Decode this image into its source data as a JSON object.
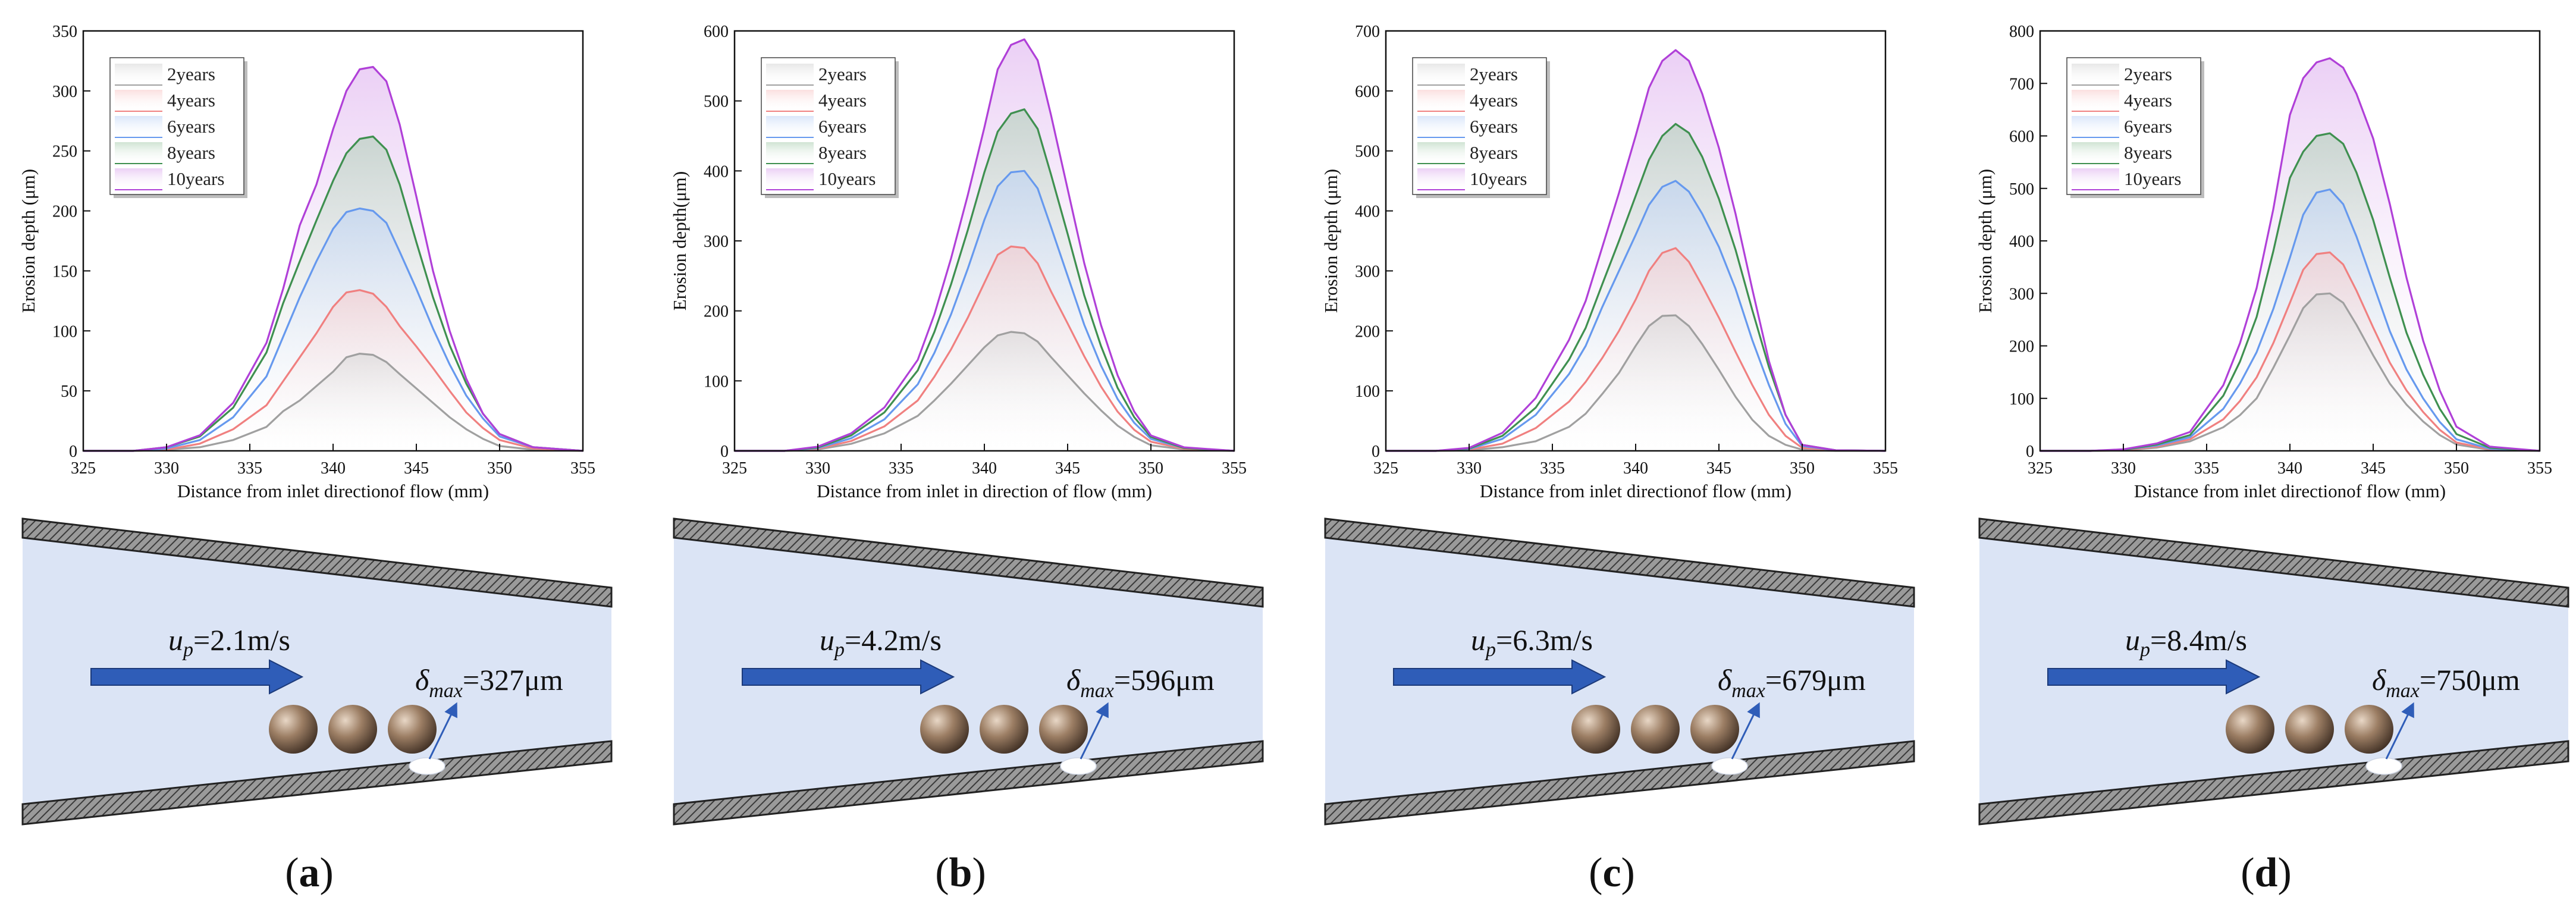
{
  "colors": {
    "2years": "#a0a0a0",
    "4years": "#f08080",
    "6years": "#6699ee",
    "8years": "#3f9050",
    "10years": "#b040d8",
    "fluid": "#dbe4f5",
    "arrow": "#2f5db8",
    "wall": "#888888"
  },
  "chart_data": [
    {
      "type": "area",
      "panel_label": "(a)",
      "xlabel": "Distance from inlet directionof flow (mm)",
      "ylabel": "Erosion depth (μm)",
      "xlim": [
        325,
        355
      ],
      "ylim": [
        0,
        350
      ],
      "xticks": [
        325,
        330,
        335,
        340,
        345,
        350,
        355
      ],
      "yticks": [
        0,
        50,
        100,
        150,
        200,
        250,
        300,
        350
      ],
      "legend_position": "top-left",
      "grid": false,
      "x": [
        325,
        328,
        330,
        332,
        334,
        336,
        337,
        338,
        339,
        340,
        340.8,
        341.6,
        342.4,
        343.2,
        344,
        345,
        346,
        347,
        348,
        349,
        350,
        352,
        355
      ],
      "series": [
        {
          "name": "2years",
          "key": "2years",
          "values": [
            0,
            0,
            1,
            3,
            9,
            20,
            33,
            42,
            54,
            66,
            78,
            81,
            80,
            74,
            64,
            52,
            40,
            28,
            18,
            10,
            4,
            1,
            0
          ]
        },
        {
          "name": "4years",
          "key": "4years",
          "values": [
            0,
            0,
            1,
            6,
            18,
            38,
            58,
            78,
            98,
            120,
            132,
            134,
            131,
            120,
            104,
            87,
            69,
            50,
            32,
            19,
            9,
            2,
            0
          ]
        },
        {
          "name": "6years",
          "key": "6years",
          "values": [
            0,
            0,
            2,
            9,
            28,
            62,
            95,
            128,
            158,
            185,
            199,
            202,
            200,
            190,
            166,
            135,
            102,
            72,
            46,
            27,
            12,
            3,
            0
          ]
        },
        {
          "name": "8years",
          "key": "8years",
          "values": [
            0,
            0,
            3,
            12,
            36,
            82,
            123,
            158,
            192,
            225,
            248,
            260,
            262,
            251,
            222,
            174,
            128,
            88,
            56,
            31,
            14,
            3,
            0
          ]
        },
        {
          "name": "10years",
          "key": "10years",
          "values": [
            0,
            0,
            3,
            13,
            40,
            90,
            135,
            188,
            222,
            268,
            300,
            318,
            320,
            308,
            272,
            212,
            150,
            100,
            60,
            31,
            14,
            3,
            0
          ]
        }
      ],
      "schematic": {
        "velocity_symbol": "u",
        "velocity_subscript": "p",
        "velocity_value": "=2.1m/s",
        "depth_symbol": "δ",
        "depth_subscript": "max",
        "depth_value": "=327μm"
      }
    },
    {
      "type": "area",
      "panel_label": "(b)",
      "xlabel": "Distance from inlet in direction of flow (mm)",
      "ylabel": "Erosion depth(μm)",
      "xlim": [
        325,
        355
      ],
      "ylim": [
        0,
        600
      ],
      "xticks": [
        325,
        330,
        335,
        340,
        345,
        350,
        355
      ],
      "yticks": [
        0,
        100,
        200,
        300,
        400,
        500,
        600
      ],
      "legend_position": "top-left",
      "grid": false,
      "x": [
        325,
        328,
        330,
        332,
        334,
        336,
        337,
        338,
        339,
        340,
        340.8,
        341.6,
        342.4,
        343.2,
        344,
        345,
        346,
        347,
        348,
        349,
        350,
        352,
        355
      ],
      "series": [
        {
          "name": "2years",
          "key": "2years",
          "values": [
            0,
            0,
            2,
            10,
            25,
            50,
            72,
            96,
            122,
            148,
            165,
            170,
            168,
            156,
            134,
            108,
            82,
            58,
            36,
            20,
            8,
            2,
            0
          ]
        },
        {
          "name": "4years",
          "key": "4years",
          "values": [
            0,
            0,
            3,
            14,
            35,
            72,
            106,
            145,
            190,
            240,
            280,
            292,
            290,
            268,
            228,
            182,
            135,
            92,
            56,
            30,
            13,
            3,
            0
          ]
        },
        {
          "name": "6years",
          "key": "6years",
          "values": [
            0,
            0,
            4,
            18,
            45,
            95,
            140,
            195,
            260,
            330,
            378,
            398,
            400,
            375,
            320,
            250,
            180,
            122,
            74,
            40,
            17,
            4,
            0
          ]
        },
        {
          "name": "8years",
          "key": "8years",
          "values": [
            0,
            0,
            5,
            22,
            55,
            115,
            170,
            238,
            315,
            398,
            456,
            482,
            488,
            460,
            395,
            310,
            222,
            150,
            90,
            48,
            20,
            4,
            0
          ]
        },
        {
          "name": "10years",
          "key": "10years",
          "values": [
            0,
            0,
            6,
            25,
            62,
            130,
            195,
            275,
            365,
            462,
            545,
            580,
            588,
            558,
            480,
            374,
            268,
            180,
            108,
            56,
            22,
            5,
            0
          ]
        }
      ],
      "schematic": {
        "velocity_symbol": "u",
        "velocity_subscript": "p",
        "velocity_value": "=4.2m/s",
        "depth_symbol": "δ",
        "depth_subscript": "max",
        "depth_value": "=596μm"
      }
    },
    {
      "type": "area",
      "panel_label": "(c)",
      "xlabel": "Distance from inlet directionof flow (mm)",
      "ylabel": "Erosion depth (μm)",
      "xlim": [
        325,
        355
      ],
      "ylim": [
        0,
        700
      ],
      "xticks": [
        325,
        330,
        335,
        340,
        345,
        350,
        355
      ],
      "yticks": [
        0,
        100,
        200,
        300,
        400,
        500,
        600,
        700
      ],
      "legend_position": "top-left",
      "grid": false,
      "x": [
        325,
        328,
        330,
        332,
        334,
        336,
        337,
        338,
        339,
        340,
        340.8,
        341.6,
        342.4,
        343.2,
        344,
        345,
        346,
        347,
        348,
        349,
        350,
        352,
        355
      ],
      "series": [
        {
          "name": "2years",
          "key": "2years",
          "values": [
            0,
            0,
            1,
            6,
            16,
            40,
            62,
            95,
            130,
            175,
            208,
            225,
            226,
            208,
            178,
            135,
            90,
            52,
            25,
            10,
            2,
            0,
            0
          ]
        },
        {
          "name": "4years",
          "key": "4years",
          "values": [
            0,
            0,
            2,
            12,
            38,
            82,
            115,
            155,
            200,
            252,
            300,
            330,
            338,
            315,
            275,
            222,
            165,
            110,
            60,
            25,
            5,
            1,
            0
          ]
        },
        {
          "name": "6years",
          "key": "6years",
          "values": [
            0,
            0,
            3,
            20,
            60,
            128,
            175,
            240,
            300,
            360,
            410,
            440,
            450,
            432,
            395,
            340,
            270,
            185,
            110,
            45,
            8,
            1,
            0
          ]
        },
        {
          "name": "8years",
          "key": "8years",
          "values": [
            0,
            0,
            4,
            25,
            72,
            152,
            205,
            278,
            350,
            425,
            485,
            525,
            545,
            530,
            490,
            420,
            335,
            235,
            140,
            60,
            10,
            1,
            0
          ]
        },
        {
          "name": "10years",
          "key": "10years",
          "values": [
            0,
            0,
            5,
            30,
            88,
            185,
            250,
            340,
            430,
            525,
            605,
            650,
            668,
            650,
            595,
            505,
            395,
            270,
            150,
            60,
            10,
            1,
            0
          ]
        }
      ],
      "schematic": {
        "velocity_symbol": "u",
        "velocity_subscript": "p",
        "velocity_value": "=6.3m/s",
        "depth_symbol": "δ",
        "depth_subscript": "max",
        "depth_value": "=679μm"
      }
    },
    {
      "type": "area",
      "panel_label": "(d)",
      "xlabel": "Distance from inlet directionof flow (mm)",
      "ylabel": "Erosion depth (μm)",
      "xlim": [
        325,
        355
      ],
      "ylim": [
        0,
        800
      ],
      "xticks": [
        325,
        330,
        335,
        340,
        345,
        350,
        355
      ],
      "yticks": [
        0,
        100,
        200,
        300,
        400,
        500,
        600,
        700,
        800
      ],
      "legend_position": "top-left",
      "grid": false,
      "x": [
        325,
        328,
        330,
        332,
        334,
        336,
        337,
        338,
        339,
        340,
        340.8,
        341.6,
        342.4,
        343.2,
        344,
        345,
        346,
        347,
        348,
        349,
        350,
        352,
        355
      ],
      "series": [
        {
          "name": "2years",
          "key": "2years",
          "values": [
            0,
            0,
            1,
            6,
            18,
            45,
            68,
            100,
            158,
            220,
            272,
            298,
            300,
            282,
            240,
            182,
            128,
            88,
            56,
            30,
            12,
            2,
            0
          ]
        },
        {
          "name": "4years",
          "key": "4years",
          "values": [
            0,
            0,
            1,
            8,
            22,
            60,
            95,
            140,
            205,
            282,
            345,
            375,
            378,
            355,
            305,
            235,
            168,
            115,
            74,
            40,
            16,
            3,
            0
          ]
        },
        {
          "name": "6years",
          "key": "6years",
          "values": [
            0,
            0,
            2,
            10,
            26,
            80,
            128,
            188,
            270,
            368,
            450,
            492,
            498,
            470,
            408,
            318,
            228,
            155,
            100,
            55,
            22,
            4,
            0
          ]
        },
        {
          "name": "8years",
          "key": "8years",
          "values": [
            0,
            0,
            2,
            12,
            30,
            105,
            170,
            255,
            380,
            520,
            570,
            600,
            605,
            585,
            530,
            440,
            330,
            225,
            145,
            80,
            32,
            6,
            0
          ]
        },
        {
          "name": "10years",
          "key": "10years",
          "values": [
            0,
            0,
            3,
            14,
            36,
            125,
            205,
            310,
            460,
            640,
            710,
            740,
            748,
            730,
            680,
            595,
            470,
            330,
            210,
            115,
            46,
            8,
            0
          ]
        }
      ],
      "schematic": {
        "velocity_symbol": "u",
        "velocity_subscript": "p",
        "velocity_value": "=8.4m/s",
        "depth_symbol": "δ",
        "depth_subscript": "max",
        "depth_value": "=750μm"
      }
    }
  ]
}
